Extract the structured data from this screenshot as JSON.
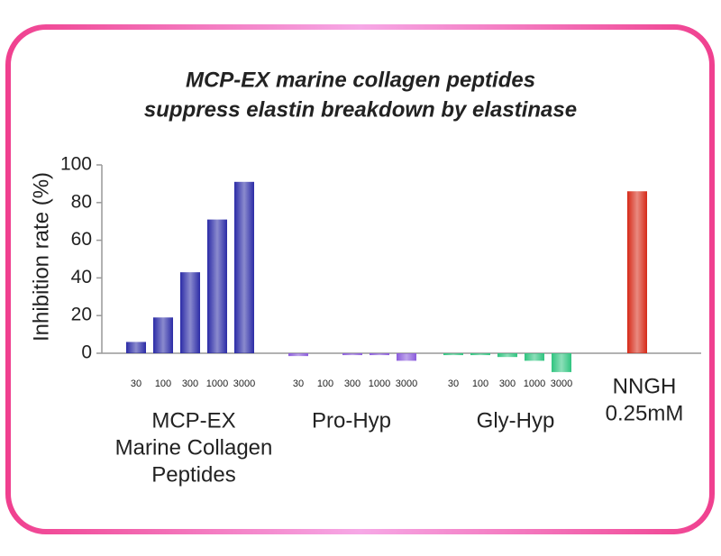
{
  "chart_data": {
    "type": "bar",
    "title": [
      "MCP-EX marine collagen peptides",
      "suppress elastin breakdown by elastinase"
    ],
    "y_label": "Inhibition rate (%)",
    "ylim": [
      0,
      100
    ],
    "yticks": [
      0,
      20,
      40,
      60,
      80,
      100
    ],
    "groups": [
      {
        "name": [
          "MCP-EX",
          "Marine Collagen",
          "Peptides"
        ],
        "color": "#2b2ba6",
        "categories": [
          "30",
          "100",
          "300",
          "1000",
          "3000"
        ],
        "values": [
          6,
          19,
          43,
          71,
          91
        ]
      },
      {
        "name": [
          "Pro-Hyp"
        ],
        "color": "#8b5cdc",
        "categories": [
          "30",
          "100",
          "300",
          "1000",
          "3000"
        ],
        "values": [
          -1.5,
          0,
          -1,
          -1,
          -4
        ]
      },
      {
        "name": [
          "Gly-Hyp"
        ],
        "color": "#2fc47f",
        "categories": [
          "30",
          "100",
          "300",
          "1000",
          "3000"
        ],
        "values": [
          -1,
          -1,
          -2,
          -4,
          -10
        ]
      },
      {
        "name": [
          "NNGH",
          "0.25mM"
        ],
        "color": "#d62a18",
        "categories": [
          null
        ],
        "values": [
          86
        ]
      }
    ]
  }
}
